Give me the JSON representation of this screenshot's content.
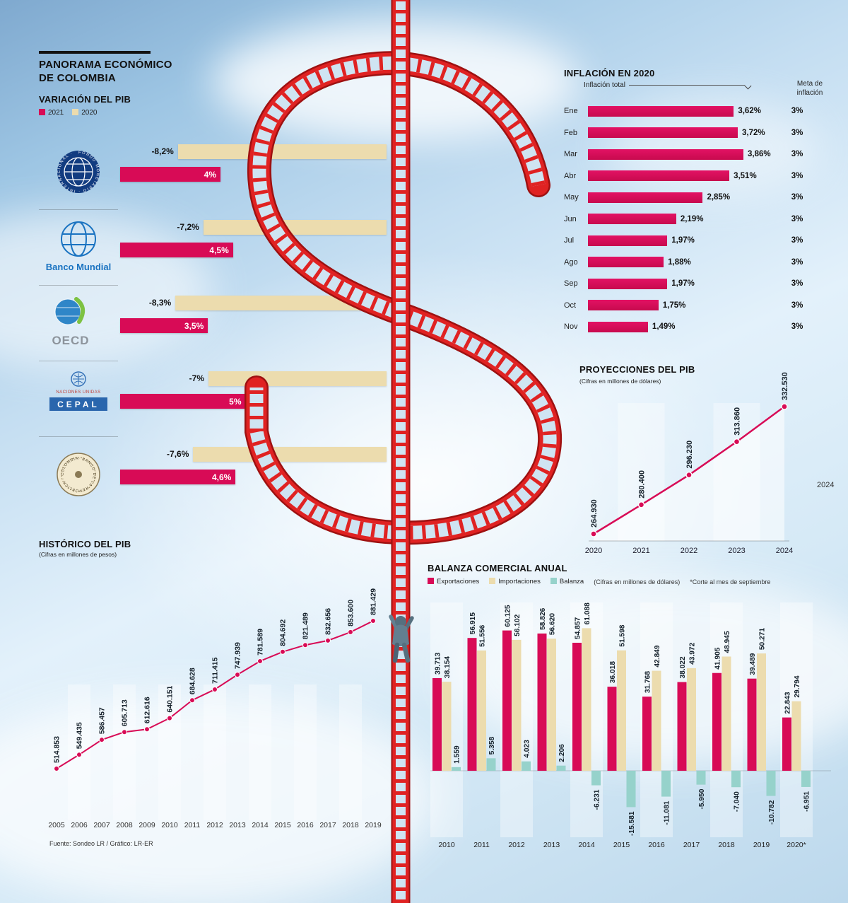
{
  "page": {
    "title": "PANORAMA ECONÓMICO DE COLOMBIA",
    "source_note": "Fuente: Sondeo LR / Gráfico: LR-ER",
    "right_margin_year": "2024"
  },
  "colors": {
    "pink": "#d80b56",
    "beige": "#ecdcae",
    "teal": "#96d2cb",
    "track_red": "#df2322",
    "text_dark": "#111111"
  },
  "logos": {
    "imf": "FONDO MONETARIO · INTERNACIONAL ·",
    "world_bank": "Banco Mundial",
    "oecd": "OECD",
    "cepal_top": "NACIONES UNIDAS",
    "cepal": "CEPAL",
    "banrep": "· BANCO DE LA REPÚBLICA · COLOMBIA"
  },
  "chart_data": [
    {
      "id": "variacion-del-pib",
      "type": "bar",
      "title": "VARIACIÓN DEL PIB",
      "legend": [
        {
          "name": "2021",
          "color": "#d80b56"
        },
        {
          "name": "2020",
          "color": "#ecdcae"
        }
      ],
      "rows": [
        {
          "institution": "Fondo Monetario Internacional",
          "v2020": -8.2,
          "l2020": "-8,2%",
          "v2021": 4,
          "l2021": "4%"
        },
        {
          "institution": "Banco Mundial",
          "v2020": -7.2,
          "l2020": "-7,2%",
          "v2021": 4.5,
          "l2021": "4,5%"
        },
        {
          "institution": "OECD",
          "v2020": -8.3,
          "l2020": "-8,3%",
          "v2021": 3.5,
          "l2021": "3,5%"
        },
        {
          "institution": "CEPAL - Naciones Unidas",
          "v2020": -7,
          "l2020": "-7%",
          "v2021": 5,
          "l2021": "5%"
        },
        {
          "institution": "Banco de la República",
          "v2020": -7.6,
          "l2020": "-7,6%",
          "v2021": 4.6,
          "l2021": "4,6%"
        }
      ]
    },
    {
      "id": "inflacion-en-2020",
      "type": "bar",
      "title": "INFLACIÓN EN 2020",
      "series_label": "Inflación total",
      "target_label": "Meta de inflación",
      "rows": [
        {
          "month": "Ene",
          "value": 3.62,
          "label": "3,62%",
          "target": "3%"
        },
        {
          "month": "Feb",
          "value": 3.72,
          "label": "3,72%",
          "target": "3%"
        },
        {
          "month": "Mar",
          "value": 3.86,
          "label": "3,86%",
          "target": "3%"
        },
        {
          "month": "Abr",
          "value": 3.51,
          "label": "3,51%",
          "target": "3%"
        },
        {
          "month": "May",
          "value": 2.85,
          "label": "2,85%",
          "target": "3%"
        },
        {
          "month": "Jun",
          "value": 2.19,
          "label": "2,19%",
          "target": "3%"
        },
        {
          "month": "Jul",
          "value": 1.97,
          "label": "1,97%",
          "target": "3%"
        },
        {
          "month": "Ago",
          "value": 1.88,
          "label": "1,88%",
          "target": "3%"
        },
        {
          "month": "Sep",
          "value": 1.97,
          "label": "1,97%",
          "target": "3%"
        },
        {
          "month": "Oct",
          "value": 1.75,
          "label": "1,75%",
          "target": "3%"
        },
        {
          "month": "Nov",
          "value": 1.49,
          "label": "1,49%",
          "target": "3%"
        }
      ]
    },
    {
      "id": "proyecciones-del-pib",
      "type": "line",
      "title": "PROYECCIONES DEL PIB",
      "subtitle": "(Cifras en millones de dólares)",
      "x": [
        "2020",
        "2021",
        "2022",
        "2023",
        "2024"
      ],
      "values": [
        264930,
        280400,
        296230,
        313860,
        332530
      ],
      "labels": [
        "264.930",
        "280.400",
        "296.230",
        "313.860",
        "332.530"
      ]
    },
    {
      "id": "historico-del-pib",
      "type": "line",
      "title": "HISTÓRICO DEL PIB",
      "subtitle": "(Cifras en millones de pesos)",
      "x": [
        "2005",
        "2006",
        "2007",
        "2008",
        "2009",
        "2010",
        "2011",
        "2012",
        "2013",
        "2014",
        "2015",
        "2016",
        "2017",
        "2018",
        "2019"
      ],
      "values": [
        514853,
        549435,
        586457,
        605713,
        612616,
        640151,
        684628,
        711415,
        747939,
        781589,
        804692,
        821489,
        832656,
        853600,
        881429
      ],
      "labels": [
        "514.853",
        "549.435",
        "586.457",
        "605.713",
        "612.616",
        "640.151",
        "684.628",
        "711.415",
        "747.939",
        "781.589",
        "804.692",
        "821.489",
        "832.656",
        "853.600",
        "881.429"
      ]
    },
    {
      "id": "balanza-comercial-anual",
      "type": "bar",
      "title": "BALANZA COMERCIAL ANUAL",
      "unit_note": "(Cifras en millones de dólares)",
      "footnote": "*Corte al mes de septiembre",
      "categories": [
        "2010",
        "2011",
        "2012",
        "2013",
        "2014",
        "2015",
        "2016",
        "2017",
        "2018",
        "2019",
        "2020*"
      ],
      "series": [
        {
          "name": "Exportaciones",
          "color": "#d80b56",
          "values": [
            39713,
            56915,
            60125,
            58826,
            54857,
            36018,
            31768,
            38022,
            41905,
            39489,
            22843
          ],
          "labels": [
            "39.713",
            "56.915",
            "60.125",
            "58.826",
            "54.857",
            "36.018",
            "31.768",
            "38.022",
            "41.905",
            "39.489",
            "22.843"
          ]
        },
        {
          "name": "Importaciones",
          "color": "#ecdcae",
          "values": [
            38154,
            51556,
            56102,
            56620,
            61088,
            51598,
            42849,
            43972,
            48945,
            50271,
            29794
          ],
          "labels": [
            "38.154",
            "51.556",
            "56.102",
            "56.620",
            "61.088",
            "51.598",
            "42.849",
            "43.972",
            "48.945",
            "50.271",
            "29.794"
          ]
        },
        {
          "name": "Balanza",
          "color": "#96d2cb",
          "values": [
            1559,
            5358,
            4023,
            2206,
            -6231,
            -15581,
            -11081,
            -5950,
            -7040,
            -10782,
            -6951
          ],
          "labels": [
            "1.559",
            "5.358",
            "4.023",
            "2.206",
            "-6.231",
            "-15.581",
            "-11.081",
            "-5.950",
            "-7.040",
            "-10.782",
            "-6.951"
          ]
        }
      ]
    }
  ]
}
